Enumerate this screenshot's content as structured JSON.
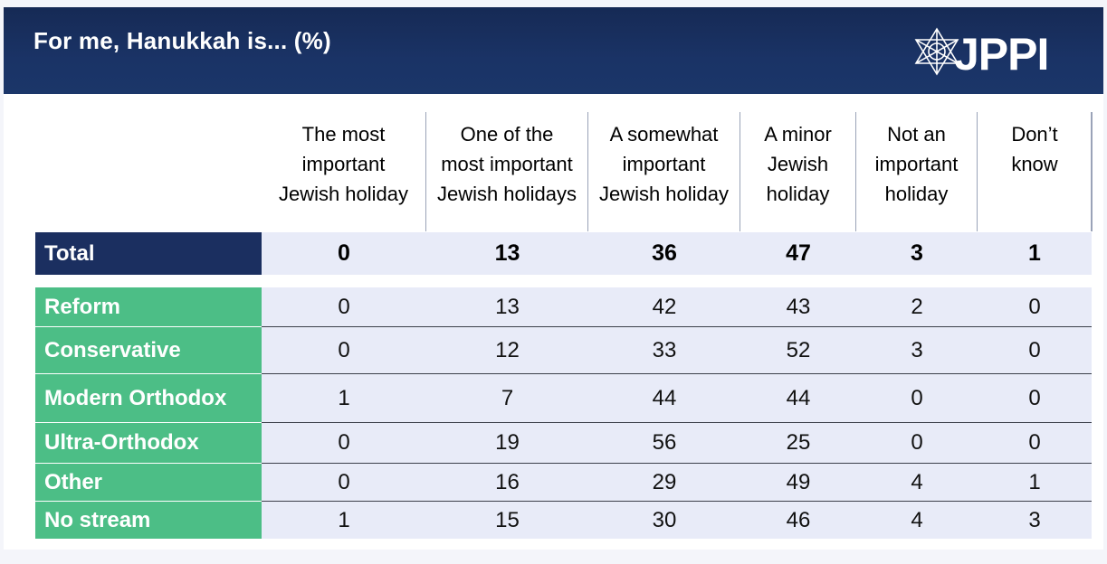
{
  "header": {
    "title": "For me, Hanukkah is... (%)"
  },
  "logo": {
    "text": "JPPI",
    "icon": "star-of-david-icon"
  },
  "colors": {
    "header_bg": "#1a3366",
    "total_label_bg": "#1b2f60",
    "stream_label_bg": "#4cbe86",
    "cell_bg": "#e8ebf8"
  },
  "chart_data": {
    "type": "table",
    "title": "For me, Hanukkah is... (%)",
    "columns": [
      "The most important Jewish holiday",
      "One of the most important Jewish holidays",
      "A somewhat important Jewish holiday",
      "A minor Jewish holiday",
      "Not an important holiday",
      "Don’t know"
    ],
    "column_lines": [
      [
        "The most",
        "important",
        "Jewish holiday"
      ],
      [
        "One of the",
        "most important",
        "Jewish holidays"
      ],
      [
        "A somewhat",
        "important",
        "Jewish holiday"
      ],
      [
        "A minor",
        "Jewish",
        "holiday"
      ],
      [
        "Not an",
        "important",
        "holiday"
      ],
      [
        "Don’t",
        "know"
      ]
    ],
    "total": {
      "label": "Total",
      "values": [
        0,
        13,
        36,
        47,
        3,
        1
      ]
    },
    "rows": [
      {
        "label": "Reform",
        "values": [
          0,
          13,
          42,
          43,
          2,
          0
        ]
      },
      {
        "label": "Conservative",
        "values": [
          0,
          12,
          33,
          52,
          3,
          0
        ]
      },
      {
        "label": "Modern Orthodox",
        "values": [
          1,
          7,
          44,
          44,
          0,
          0
        ]
      },
      {
        "label": "Ultra-Orthodox",
        "values": [
          0,
          19,
          56,
          25,
          0,
          0
        ]
      },
      {
        "label": "Other",
        "values": [
          0,
          16,
          29,
          49,
          4,
          1
        ]
      },
      {
        "label": "No stream",
        "values": [
          1,
          15,
          30,
          46,
          4,
          3
        ]
      }
    ]
  }
}
